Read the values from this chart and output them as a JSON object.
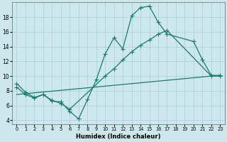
{
  "xlabel": "Humidex (Indice chaleur)",
  "bg_color": "#cce8ec",
  "grid_color": "#aacdd4",
  "line_color": "#1a7a6e",
  "xlim": [
    -0.5,
    23.5
  ],
  "ylim": [
    3.5,
    20.0
  ],
  "xticks": [
    0,
    1,
    2,
    3,
    4,
    5,
    6,
    7,
    8,
    9,
    10,
    11,
    12,
    13,
    14,
    15,
    16,
    17,
    18,
    19,
    20,
    21,
    22,
    23
  ],
  "yticks": [
    4,
    6,
    8,
    10,
    12,
    14,
    16,
    18
  ],
  "line1_x": [
    0,
    1,
    2,
    3,
    4,
    5,
    6,
    7,
    8,
    9,
    10,
    11,
    12,
    13,
    14,
    15,
    16,
    17,
    20,
    21,
    22,
    23
  ],
  "line1_y": [
    9.0,
    7.8,
    7.1,
    7.5,
    6.6,
    6.5,
    5.2,
    4.2,
    6.8,
    9.5,
    13.0,
    15.2,
    13.7,
    18.2,
    19.3,
    19.5,
    17.3,
    15.7,
    14.7,
    12.2,
    10.1,
    10.1
  ],
  "line2_x": [
    0,
    1,
    2,
    3,
    4,
    5,
    6,
    10,
    11,
    12,
    13,
    14,
    15,
    16,
    17,
    22,
    23
  ],
  "line2_y": [
    8.5,
    7.5,
    7.0,
    7.5,
    6.7,
    6.3,
    5.5,
    10.0,
    11.0,
    12.2,
    13.3,
    14.2,
    14.9,
    15.7,
    16.2,
    10.0,
    10.0
  ],
  "line3_x": [
    0,
    22,
    23
  ],
  "line3_y": [
    7.5,
    10.0,
    10.0
  ]
}
